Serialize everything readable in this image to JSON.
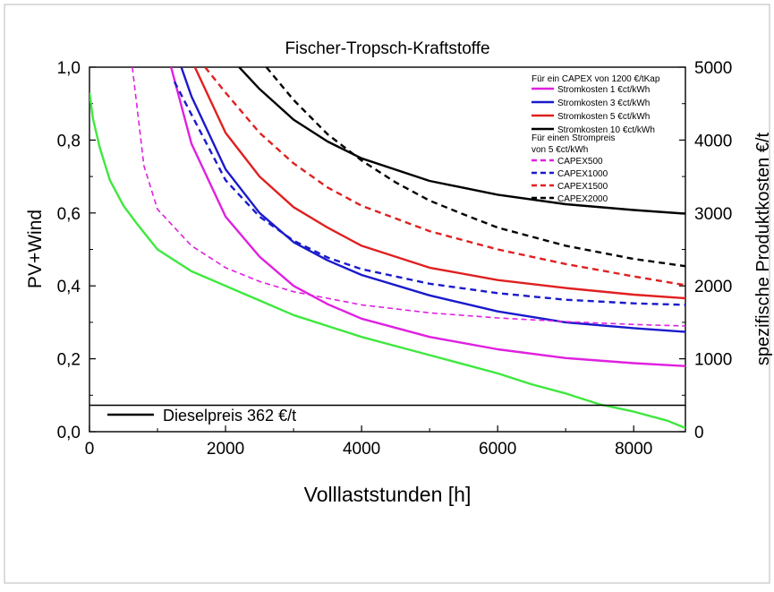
{
  "chart_data": {
    "type": "line",
    "title": "Fischer-Tropsch-Kraftstoffe",
    "xlabel": "Volllaststunden [h]",
    "ylabel_left": "PV+Wind",
    "ylabel_right": "spezifische Produktkosten €/t",
    "xlim": [
      0,
      8760
    ],
    "ylim_left": [
      0,
      1
    ],
    "ylim_right": [
      0,
      5000
    ],
    "x_ticks": [
      "0",
      "2000",
      "4000",
      "6000",
      "8000"
    ],
    "y_ticks_left": [
      "0,0",
      "0,2",
      "0,4",
      "0,6",
      "0,8",
      "1,0"
    ],
    "y_ticks_right": [
      "0",
      "1000",
      "2000",
      "3000",
      "4000",
      "5000"
    ],
    "grid": false,
    "legend_placement": "top-right",
    "legend_heading_1": "Für ein CAPEX von 1200 €/tKap",
    "legend_heading_2a": "Für einen Strompreis",
    "legend_heading_2b": "von 5 €ct/kWh",
    "series": [
      {
        "name": "PV+Wind",
        "axis": "left",
        "color": "#3ee83e",
        "dash": "solid",
        "x": [
          0,
          50,
          150,
          300,
          500,
          700,
          1000,
          1500,
          2000,
          2500,
          3000,
          3500,
          4000,
          4500,
          5000,
          5500,
          6000,
          6500,
          7000,
          7500,
          8000,
          8500,
          8760
        ],
        "y": [
          0.93,
          0.86,
          0.78,
          0.69,
          0.62,
          0.57,
          0.5,
          0.44,
          0.4,
          0.36,
          0.32,
          0.29,
          0.26,
          0.235,
          0.21,
          0.185,
          0.16,
          0.13,
          0.105,
          0.075,
          0.055,
          0.03,
          0.01
        ]
      },
      {
        "name": "Stromkosten 1 €ct/kWh",
        "axis": "right",
        "color": "#e020e0",
        "dash": "solid",
        "x": [
          1200,
          1500,
          2000,
          2500,
          3000,
          3500,
          4000,
          5000,
          6000,
          7000,
          8000,
          8760
        ],
        "y": [
          5000,
          3950,
          2950,
          2400,
          2000,
          1750,
          1550,
          1300,
          1130,
          1010,
          940,
          900
        ]
      },
      {
        "name": "Stromkosten 3 €ct/kWh",
        "axis": "right",
        "color": "#1a1acc",
        "dash": "solid",
        "x": [
          1350,
          1500,
          2000,
          2500,
          3000,
          3500,
          4000,
          5000,
          6000,
          7000,
          8000,
          8760
        ],
        "y": [
          5000,
          4600,
          3600,
          3000,
          2600,
          2350,
          2150,
          1870,
          1650,
          1500,
          1420,
          1370
        ]
      },
      {
        "name": "Stromkosten 5 €ct/kWh",
        "axis": "right",
        "color": "#e02020",
        "dash": "solid",
        "x": [
          1550,
          2000,
          2500,
          3000,
          3500,
          4000,
          5000,
          6000,
          7000,
          8000,
          8760
        ],
        "y": [
          5000,
          4100,
          3500,
          3080,
          2800,
          2550,
          2250,
          2080,
          1970,
          1880,
          1830
        ]
      },
      {
        "name": "Stromkosten 10 €ct/kWh",
        "axis": "right",
        "color": "#000000",
        "dash": "solid",
        "x": [
          2200,
          2500,
          3000,
          3500,
          4000,
          5000,
          6000,
          7000,
          8000,
          8760
        ],
        "y": [
          5000,
          4700,
          4280,
          3980,
          3750,
          3440,
          3250,
          3120,
          3040,
          2990
        ]
      },
      {
        "name": "CAPEX500",
        "axis": "right",
        "color": "#e020e0",
        "dash": "thin-dash",
        "x": [
          630,
          800,
          1000,
          1500,
          2000,
          2500,
          3000,
          4000,
          5000,
          6000,
          7000,
          8000,
          8760
        ],
        "y": [
          5000,
          3650,
          3050,
          2550,
          2250,
          2060,
          1920,
          1740,
          1630,
          1560,
          1510,
          1470,
          1450
        ]
      },
      {
        "name": "CAPEX1000",
        "axis": "right",
        "color": "#1a1acc",
        "dash": "dash",
        "x": [
          1250,
          1500,
          2000,
          2500,
          3000,
          3500,
          4000,
          5000,
          6000,
          7000,
          8000,
          8760
        ],
        "y": [
          4800,
          4350,
          3450,
          2950,
          2620,
          2390,
          2230,
          2030,
          1900,
          1810,
          1760,
          1740
        ]
      },
      {
        "name": "CAPEX1500",
        "axis": "right",
        "color": "#e02020",
        "dash": "dash",
        "x": [
          1700,
          2000,
          2500,
          3000,
          3500,
          4000,
          5000,
          6000,
          7000,
          8000,
          8760
        ],
        "y": [
          5000,
          4650,
          4100,
          3680,
          3350,
          3100,
          2750,
          2500,
          2300,
          2130,
          2010
        ]
      },
      {
        "name": "CAPEX2000",
        "axis": "right",
        "color": "#000000",
        "dash": "dash",
        "x": [
          2600,
          3000,
          3500,
          4000,
          4500,
          5000,
          5500,
          6000,
          7000,
          8000,
          8760
        ],
        "y": [
          5000,
          4550,
          4080,
          3720,
          3420,
          3170,
          2980,
          2800,
          2550,
          2370,
          2270
        ]
      },
      {
        "name": "Dieselpreis 362 €/t",
        "axis": "right",
        "color": "#000000",
        "dash": "solid",
        "x": [
          0,
          8760
        ],
        "y": [
          362,
          362
        ]
      }
    ]
  }
}
